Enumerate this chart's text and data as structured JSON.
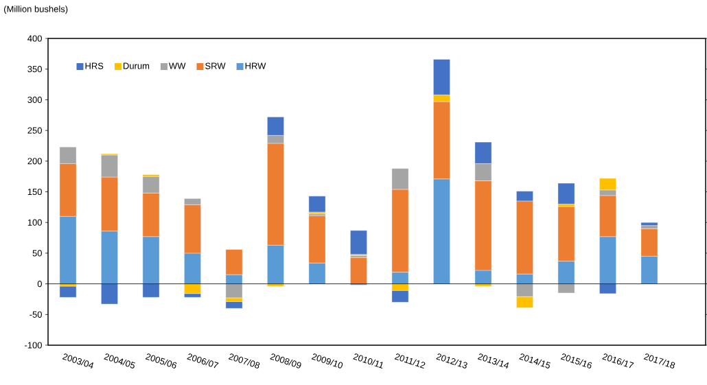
{
  "chart_data": {
    "type": "bar",
    "stacked": true,
    "ylabel": "(Million bushels)",
    "categories": [
      "2003/04",
      "2004/05",
      "2005/06",
      "2006/07",
      "2007/08",
      "2008/09",
      "2009/10",
      "2010/11",
      "2011/12",
      "2012/13",
      "2013/14",
      "2014/15",
      "2015/16",
      "2016/17",
      "2017/18"
    ],
    "series": [
      {
        "name": "HRW",
        "color": "#5b9bd5",
        "values": [
          110,
          86,
          77,
          50,
          15,
          63,
          34,
          -2,
          19,
          171,
          22,
          16,
          37,
          77,
          45
        ]
      },
      {
        "name": "SRW",
        "color": "#ed7d31",
        "values": [
          86,
          88,
          71,
          79,
          41,
          166,
          77,
          43,
          135,
          126,
          146,
          119,
          89,
          67,
          45
        ]
      },
      {
        "name": "WW",
        "color": "#a5a5a5",
        "values": [
          27,
          36,
          27,
          10,
          -23,
          13,
          3,
          3,
          34,
          null,
          28,
          -21,
          -15,
          9,
          5
        ]
      },
      {
        "name": "Durum",
        "color": "#ffc000",
        "values": [
          -4,
          2,
          3,
          -16,
          -6,
          -4,
          3,
          2,
          -11,
          11,
          -4,
          -18,
          4,
          19,
          null
        ]
      },
      {
        "name": "HRS",
        "color": "#4472c4",
        "values": [
          -18,
          -33,
          -22,
          -6,
          -11,
          30,
          26,
          39,
          -19,
          58,
          35,
          16,
          34,
          -16,
          5
        ]
      }
    ],
    "ylim": [
      -100,
      400
    ],
    "yticks": [
      -100,
      -50,
      0,
      50,
      100,
      150,
      200,
      250,
      300,
      350,
      400
    ],
    "legend": "top left"
  }
}
